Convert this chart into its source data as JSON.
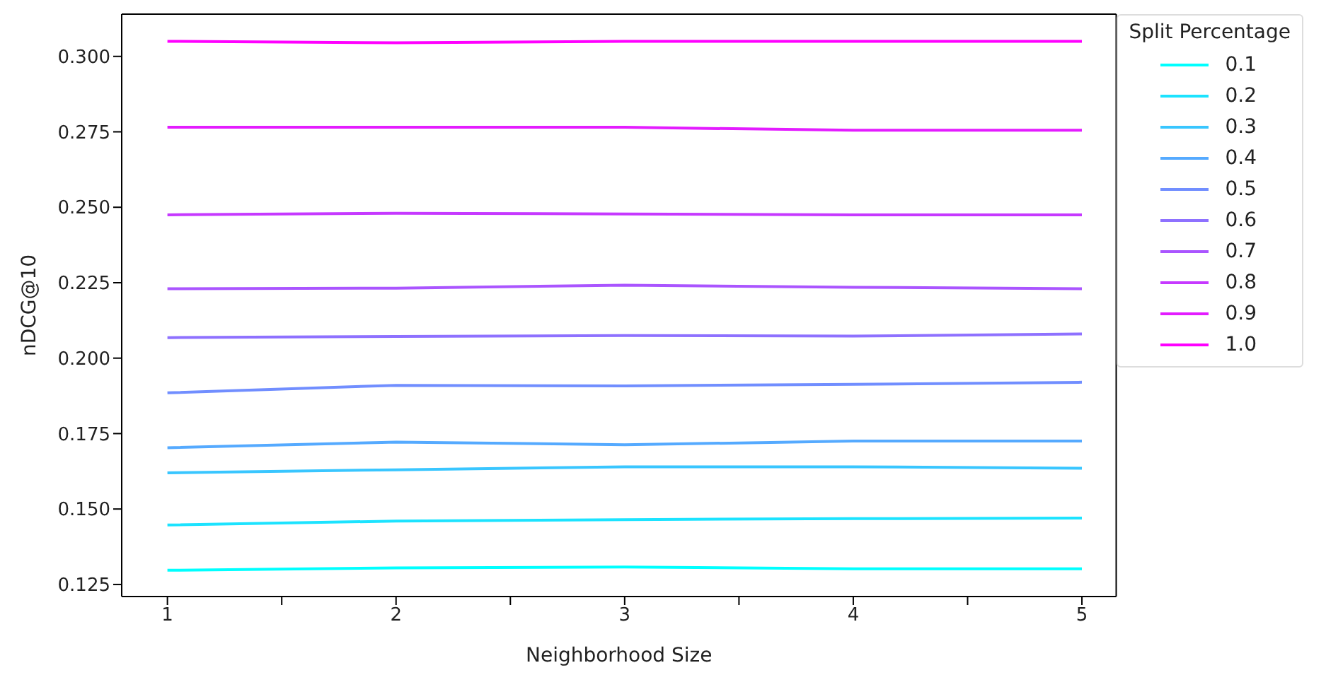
{
  "chart_data": {
    "type": "line",
    "xlabel": "Neighborhood Size",
    "ylabel": "nDCG@10",
    "legend_title": "Split Percentage",
    "legend": "right",
    "grid": false,
    "marker": "none",
    "line_style": "solid",
    "x": [
      1,
      2,
      3,
      4,
      5
    ],
    "xlim": [
      0.8,
      5.15
    ],
    "xticks": [
      1,
      {
        "value": 1.5,
        "label": null
      },
      2,
      {
        "value": 2.5,
        "label": null
      },
      3,
      {
        "value": 3.5,
        "label": null
      },
      4,
      {
        "value": 4.5,
        "label": null
      },
      5
    ],
    "ylim": [
      0.121,
      0.314
    ],
    "yticks": [
      0.125,
      {
        "value": 0.15,
        "label": "0.150"
      },
      0.175,
      {
        "value": 0.2,
        "label": "0.200"
      },
      0.225,
      {
        "value": 0.25,
        "label": "0.250"
      },
      0.275,
      {
        "value": 0.3,
        "label": "0.300"
      }
    ],
    "series": [
      {
        "name": "0.1",
        "color": "#00ffff",
        "values": [
          0.1297,
          0.1305,
          0.1308,
          0.1302,
          0.1302
        ]
      },
      {
        "name": "0.2",
        "color": "#1ce3ff",
        "values": [
          0.1447,
          0.146,
          0.1465,
          0.1468,
          0.147
        ]
      },
      {
        "name": "0.3",
        "color": "#39c6ff",
        "values": [
          0.162,
          0.163,
          0.164,
          0.164,
          0.1635
        ]
      },
      {
        "name": "0.4",
        "color": "#55aaff",
        "values": [
          0.1703,
          0.1722,
          0.1713,
          0.1725,
          0.1725
        ]
      },
      {
        "name": "0.5",
        "color": "#718eff",
        "values": [
          0.1885,
          0.191,
          0.1908,
          0.1913,
          0.192
        ]
      },
      {
        "name": "0.6",
        "color": "#8e71ff",
        "values": [
          0.2068,
          0.2072,
          0.2075,
          0.2073,
          0.208
        ]
      },
      {
        "name": "0.7",
        "color": "#aa55ff",
        "values": [
          0.223,
          0.2232,
          0.2242,
          0.2235,
          0.223
        ]
      },
      {
        "name": "0.8",
        "color": "#c639ff",
        "values": [
          0.2475,
          0.248,
          0.2478,
          0.2475,
          0.2475
        ]
      },
      {
        "name": "0.9",
        "color": "#e31cff",
        "values": [
          0.2765,
          0.2765,
          0.2765,
          0.2755,
          0.2755
        ]
      },
      {
        "name": "1.0",
        "color": "#ff00ff",
        "values": [
          0.305,
          0.3045,
          0.305,
          0.305,
          0.305
        ]
      }
    ]
  }
}
